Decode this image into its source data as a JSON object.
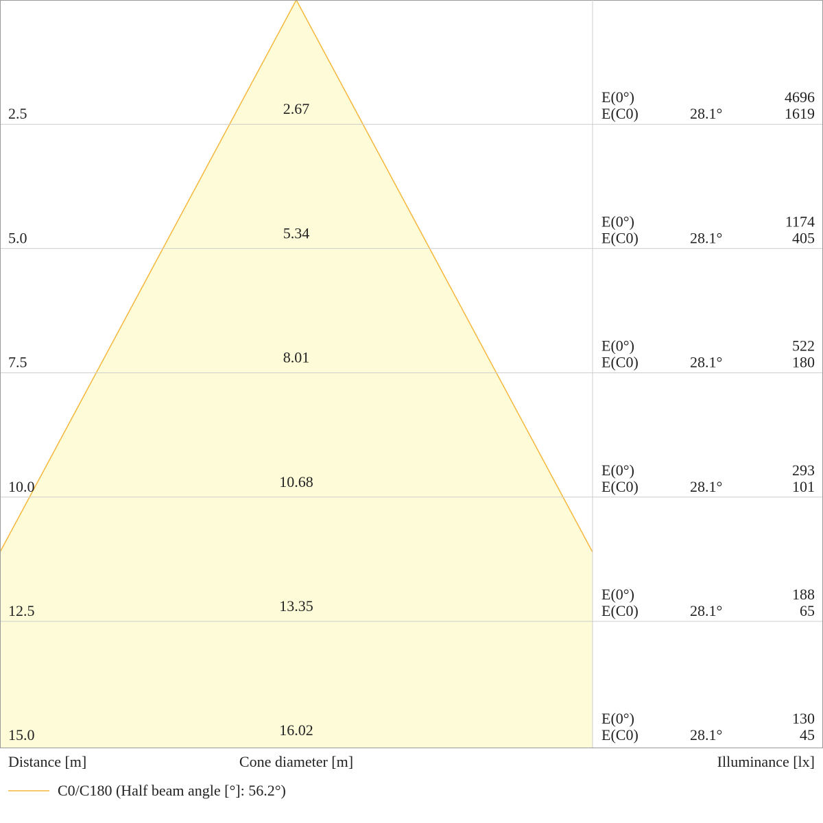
{
  "rows": [
    {
      "distance": "2.5",
      "diameter": "2.67",
      "e0_label": "E(0°)",
      "ec0_label": "E(C0)",
      "angle": "28.1°",
      "e0": "4696",
      "ec0": "1619"
    },
    {
      "distance": "5.0",
      "diameter": "5.34",
      "e0_label": "E(0°)",
      "ec0_label": "E(C0)",
      "angle": "28.1°",
      "e0": "1174",
      "ec0": "405"
    },
    {
      "distance": "7.5",
      "diameter": "8.01",
      "e0_label": "E(0°)",
      "ec0_label": "E(C0)",
      "angle": "28.1°",
      "e0": "522",
      "ec0": "180"
    },
    {
      "distance": "10.0",
      "diameter": "10.68",
      "e0_label": "E(0°)",
      "ec0_label": "E(C0)",
      "angle": "28.1°",
      "e0": "293",
      "ec0": "101"
    },
    {
      "distance": "12.5",
      "diameter": "13.35",
      "e0_label": "E(0°)",
      "ec0_label": "E(C0)",
      "angle": "28.1°",
      "e0": "188",
      "ec0": "65"
    },
    {
      "distance": "15.0",
      "diameter": "16.02",
      "e0_label": "E(0°)",
      "ec0_label": "E(C0)",
      "angle": "28.1°",
      "e0": "130",
      "ec0": "45"
    }
  ],
  "footer": {
    "distance_label": "Distance [m]",
    "diameter_label": "Cone diameter [m]",
    "illuminance_label": "Illuminance [lx]"
  },
  "legend": {
    "label": "C0/C180 (Half beam angle [°]: 56.2°)"
  }
}
